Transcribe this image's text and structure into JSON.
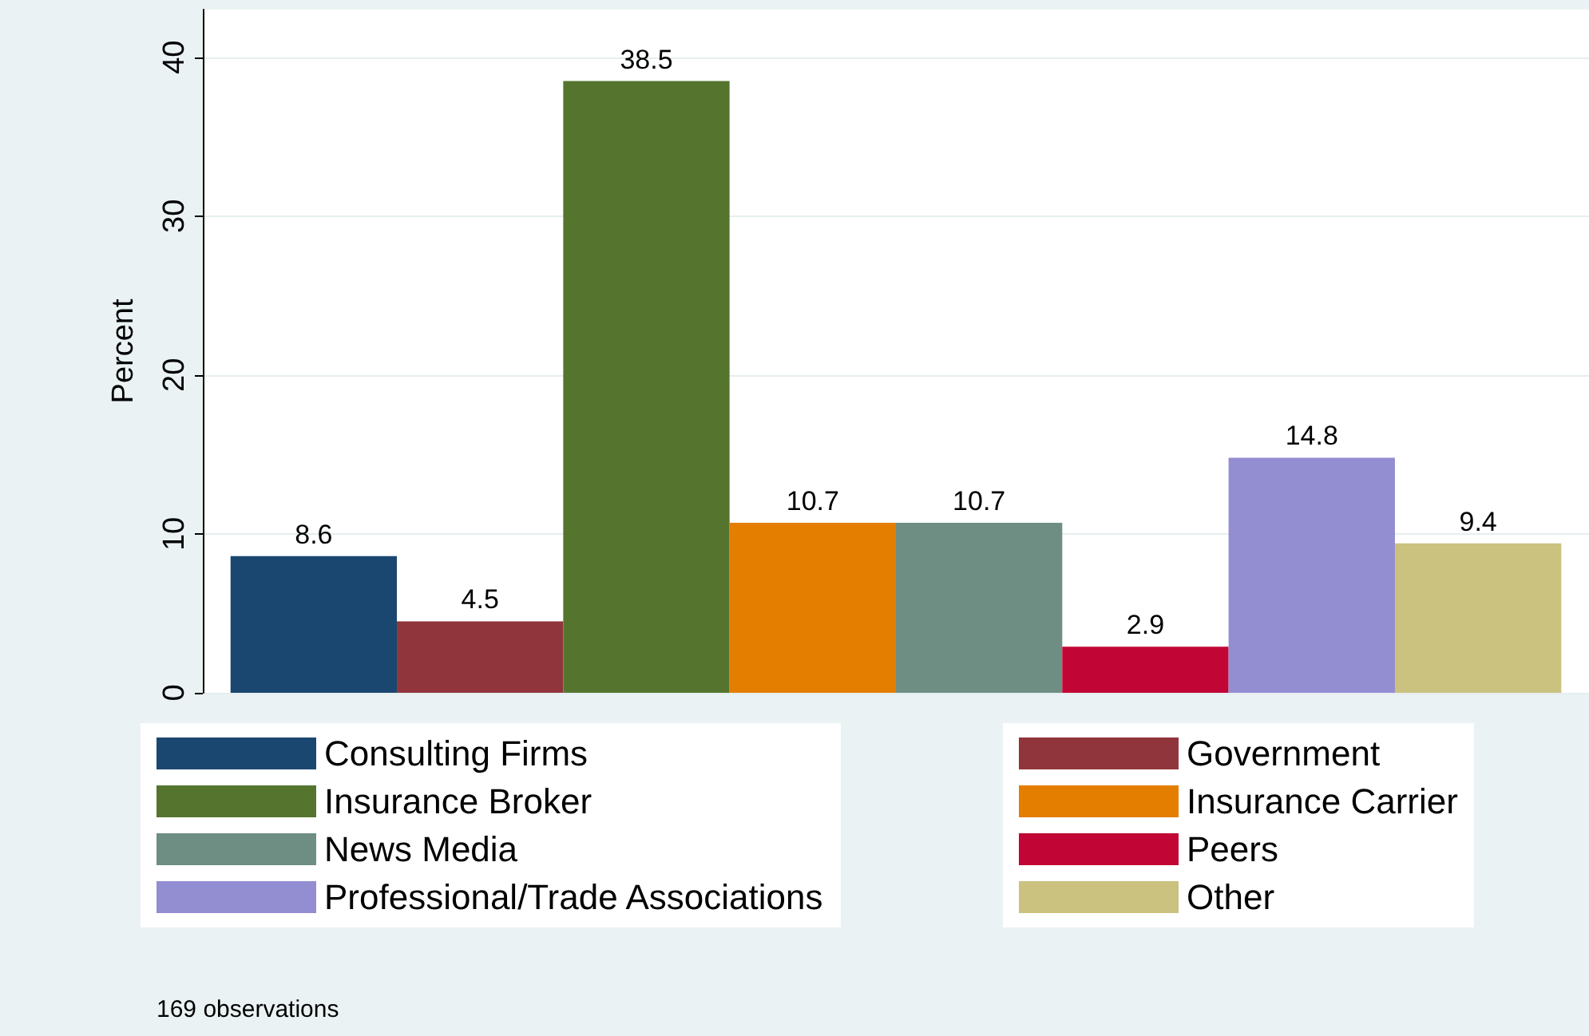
{
  "chart_data": {
    "type": "bar",
    "ylabel": "Percent",
    "categories": [
      null
    ],
    "series": [
      {
        "name": "Consulting Firms",
        "color": "#1a476f",
        "values": [
          8.6
        ]
      },
      {
        "name": "Government",
        "color": "#90353b",
        "values": [
          4.5
        ]
      },
      {
        "name": "Insurance Broker",
        "color": "#55752f",
        "values": [
          38.5
        ]
      },
      {
        "name": "Insurance Carrier",
        "color": "#e37e00",
        "values": [
          10.7
        ]
      },
      {
        "name": "News Media",
        "color": "#6e8e84",
        "values": [
          10.7
        ]
      },
      {
        "name": "Peers",
        "color": "#c10534",
        "values": [
          2.9
        ]
      },
      {
        "name": "Professional/Trade Associations",
        "color": "#938dd2",
        "values": [
          14.8
        ]
      },
      {
        "name": "Other",
        "color": "#cac27e",
        "values": [
          9.4
        ]
      }
    ],
    "ylim": [
      0,
      43
    ],
    "yticks": [
      0,
      10,
      20,
      30,
      40
    ],
    "grid": "y",
    "legend": "bottom",
    "data_labels": true,
    "annotations": [
      "169 observations"
    ]
  }
}
